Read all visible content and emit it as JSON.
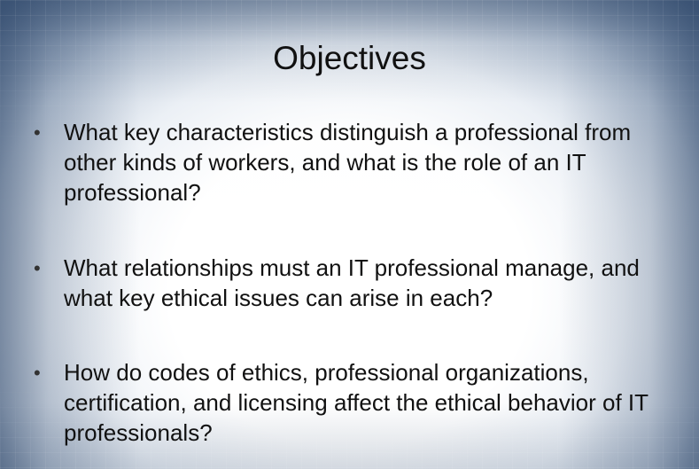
{
  "slide": {
    "title": "Objectives",
    "bullets": [
      {
        "marker": "•",
        "text": "What key characteristics distinguish a professional from other kinds of workers, and what is the role of an IT professional?"
      },
      {
        "marker": "•",
        "text": "What relationships must an IT professional manage, and what key ethical issues can arise in each?"
      },
      {
        "marker": "•",
        "text": "How do codes of ethics, professional organizations, certification, and licensing affect the ethical behavior of IT professionals?"
      }
    ]
  }
}
